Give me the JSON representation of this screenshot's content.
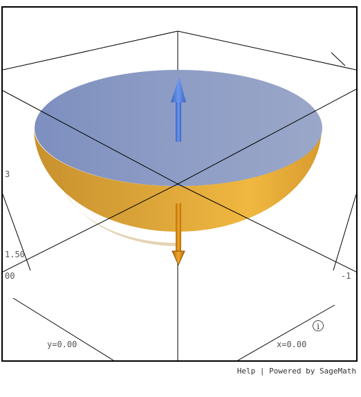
{
  "viewer": {
    "tick_labels": {
      "left_top": "3",
      "left_mid": "1.50",
      "left_bottom": "00",
      "right": "-1"
    },
    "axis_readouts": {
      "y": "y=0.00",
      "x": "x=0.00"
    },
    "info_icon_glyph": "i",
    "colors": {
      "disk": "#8b9bc4",
      "bowl": "#e3a93a",
      "arrow_up": "#4a78d6",
      "arrow_down": "#d98a12",
      "frame": "#000000"
    }
  },
  "footer": {
    "help_label": "Help",
    "separator": "|",
    "powered_label": "Powered by SageMath"
  }
}
